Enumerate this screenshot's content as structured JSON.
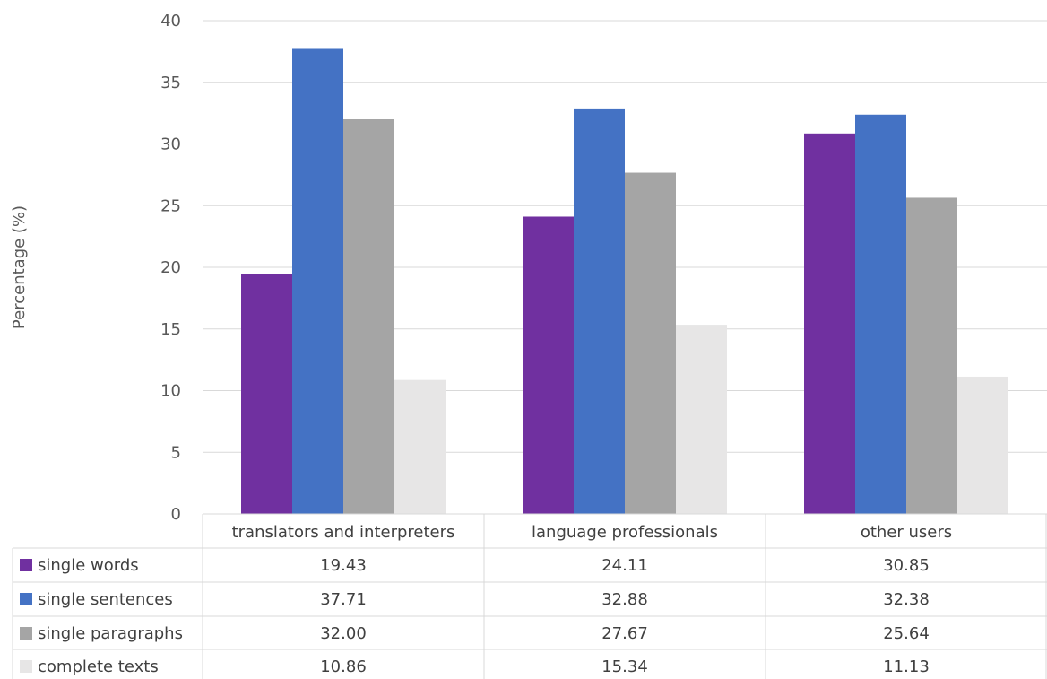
{
  "chart_data": {
    "type": "bar",
    "ylabel": "Percentage (%)",
    "ylim": [
      0,
      40
    ],
    "yticks": [
      0,
      5,
      10,
      15,
      20,
      25,
      30,
      35,
      40
    ],
    "grid": true,
    "legend_placement": "data-table-left",
    "categories": [
      "translators and interpreters",
      "language professionals",
      "other users"
    ],
    "series": [
      {
        "name": "single words",
        "color": "#7030a0",
        "values": [
          19.43,
          24.11,
          30.85
        ],
        "labels": [
          "19.43",
          "24.11",
          "30.85"
        ]
      },
      {
        "name": "single sentences",
        "color": "#4472c4",
        "values": [
          37.71,
          32.88,
          32.38
        ],
        "labels": [
          "37.71",
          "32.88",
          "32.38"
        ]
      },
      {
        "name": "single paragraphs",
        "color": "#a5a5a5",
        "values": [
          32.0,
          27.67,
          25.64
        ],
        "labels": [
          "32.00",
          "27.67",
          "25.64"
        ]
      },
      {
        "name": "complete texts",
        "color": "#e7e6e6",
        "values": [
          10.86,
          15.34,
          11.13
        ],
        "labels": [
          "10.86",
          "15.34",
          "11.13"
        ]
      }
    ]
  }
}
